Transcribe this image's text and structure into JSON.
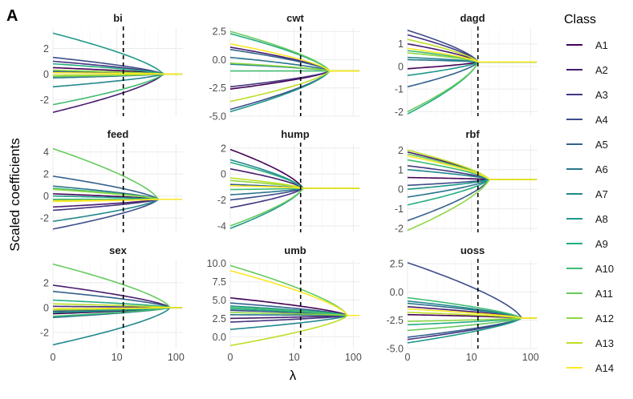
{
  "figure": {
    "panel_letter": "A",
    "xlabel": "λ",
    "ylabel": "Scaled coefficients",
    "legend_title": "Class",
    "dashed_line_x": 13,
    "x_axis": {
      "ticks": [
        0,
        10,
        100
      ],
      "scale": "log1p",
      "xlim": [
        0,
        130
      ]
    }
  },
  "colors": {
    "A1": "#440154",
    "A2": "#481C6E",
    "A3": "#453581",
    "A4": "#3D4D8A",
    "A5": "#34618D",
    "A6": "#2B748E",
    "A7": "#24878E",
    "A8": "#1F998A",
    "A9": "#25AC82",
    "A10": "#40BC72",
    "A11": "#65CB5E",
    "A12": "#8FD744",
    "A13": "#BDDF26",
    "A14": "#FDE725"
  },
  "chart_data": [
    {
      "type": "line",
      "title": "bi",
      "ylim": [
        -3.3,
        3.6
      ],
      "yticks": [
        -2,
        0,
        2
      ],
      "converge": 0,
      "series": [
        {
          "name": "A1",
          "start": 0.5,
          "x_conv": 60
        },
        {
          "name": "A2",
          "start": -3.0,
          "x_conv": 60
        },
        {
          "name": "A3",
          "start": 1.0,
          "x_conv": 60
        },
        {
          "name": "A4",
          "start": 1.3,
          "x_conv": 60
        },
        {
          "name": "A5",
          "start": 0.2,
          "x_conv": 60
        },
        {
          "name": "A6",
          "start": -0.3,
          "x_conv": 60
        },
        {
          "name": "A7",
          "start": -1.0,
          "x_conv": 60
        },
        {
          "name": "A8",
          "start": 3.2,
          "x_conv": 60
        },
        {
          "name": "A9",
          "start": 0.8,
          "x_conv": 60
        },
        {
          "name": "A10",
          "start": -2.4,
          "x_conv": 60
        },
        {
          "name": "A11",
          "start": -0.2,
          "x_conv": 60
        },
        {
          "name": "A12",
          "start": 0.3,
          "x_conv": 60
        },
        {
          "name": "A13",
          "start": -0.1,
          "x_conv": 60
        },
        {
          "name": "A14",
          "start": 0.1,
          "x_conv": 60
        }
      ]
    },
    {
      "type": "line",
      "title": "cwt",
      "ylim": [
        -5.0,
        2.8
      ],
      "yticks": [
        -5.0,
        -2.5,
        0.0,
        2.5
      ],
      "converge": -1.0,
      "series": [
        {
          "name": "A1",
          "start": -2.6,
          "x_conv": 40
        },
        {
          "name": "A2",
          "start": 1.1,
          "x_conv": 40
        },
        {
          "name": "A3",
          "start": -2.4,
          "x_conv": 40
        },
        {
          "name": "A4",
          "start": -4.4,
          "x_conv": 40
        },
        {
          "name": "A5",
          "start": 0.9,
          "x_conv": 40
        },
        {
          "name": "A6",
          "start": 0.2,
          "x_conv": 40
        },
        {
          "name": "A7",
          "start": -0.4,
          "x_conv": 40
        },
        {
          "name": "A8",
          "start": -4.6,
          "x_conv": 40
        },
        {
          "name": "A9",
          "start": 2.3,
          "x_conv": 40
        },
        {
          "name": "A10",
          "start": -1.0,
          "x_conv": 40
        },
        {
          "name": "A11",
          "start": 2.5,
          "x_conv": 40
        },
        {
          "name": "A12",
          "start": -0.3,
          "x_conv": 40
        },
        {
          "name": "A13",
          "start": -3.7,
          "x_conv": 40
        },
        {
          "name": "A14",
          "start": 1.4,
          "x_conv": 40
        }
      ]
    },
    {
      "type": "line",
      "title": "dagd",
      "ylim": [
        -2.2,
        1.7
      ],
      "yticks": [
        -2,
        -1,
        0,
        1
      ],
      "converge": 0.2,
      "series": [
        {
          "name": "A1",
          "start": -0.1,
          "x_conv": 13
        },
        {
          "name": "A2",
          "start": 1.0,
          "x_conv": 13
        },
        {
          "name": "A3",
          "start": 1.4,
          "x_conv": 13
        },
        {
          "name": "A4",
          "start": 1.6,
          "x_conv": 13
        },
        {
          "name": "A5",
          "start": -0.9,
          "x_conv": 13
        },
        {
          "name": "A6",
          "start": 0.3,
          "x_conv": 13
        },
        {
          "name": "A7",
          "start": 0.4,
          "x_conv": 13
        },
        {
          "name": "A8",
          "start": -0.4,
          "x_conv": 13
        },
        {
          "name": "A9",
          "start": -2.1,
          "x_conv": 13
        },
        {
          "name": "A10",
          "start": 0.7,
          "x_conv": 13
        },
        {
          "name": "A11",
          "start": -2.0,
          "x_conv": 13
        },
        {
          "name": "A12",
          "start": 0.6,
          "x_conv": 13
        },
        {
          "name": "A13",
          "start": 1.2,
          "x_conv": 13
        },
        {
          "name": "A14",
          "start": 0.8,
          "x_conv": 13
        }
      ]
    },
    {
      "type": "line",
      "title": "feed",
      "ylim": [
        -3.3,
        4.7
      ],
      "yticks": [
        -2,
        0,
        2,
        4
      ],
      "converge": -0.3,
      "series": [
        {
          "name": "A1",
          "start": 0.2,
          "x_conv": 50
        },
        {
          "name": "A2",
          "start": -1.0,
          "x_conv": 50
        },
        {
          "name": "A3",
          "start": -1.3,
          "x_conv": 50
        },
        {
          "name": "A4",
          "start": -3.0,
          "x_conv": 50
        },
        {
          "name": "A5",
          "start": 1.8,
          "x_conv": 50
        },
        {
          "name": "A6",
          "start": 0.9,
          "x_conv": 50
        },
        {
          "name": "A7",
          "start": -2.3,
          "x_conv": 50
        },
        {
          "name": "A8",
          "start": 0.0,
          "x_conv": 50
        },
        {
          "name": "A9",
          "start": -0.3,
          "x_conv": 50
        },
        {
          "name": "A10",
          "start": 0.7,
          "x_conv": 50
        },
        {
          "name": "A11",
          "start": 4.3,
          "x_conv": 50
        },
        {
          "name": "A12",
          "start": 0.6,
          "x_conv": 50
        },
        {
          "name": "A13",
          "start": -0.4,
          "x_conv": 50
        },
        {
          "name": "A14",
          "start": -0.5,
          "x_conv": 50
        }
      ]
    },
    {
      "type": "line",
      "title": "hump",
      "ylim": [
        -4.5,
        2.3
      ],
      "yticks": [
        -4,
        -2,
        0,
        2
      ],
      "converge": -1.1,
      "series": [
        {
          "name": "A1",
          "start": 1.9,
          "x_conv": 14
        },
        {
          "name": "A2",
          "start": 0.4,
          "x_conv": 14
        },
        {
          "name": "A3",
          "start": -2.6,
          "x_conv": 14
        },
        {
          "name": "A4",
          "start": -2.0,
          "x_conv": 14
        },
        {
          "name": "A5",
          "start": -0.8,
          "x_conv": 14
        },
        {
          "name": "A6",
          "start": -1.6,
          "x_conv": 14
        },
        {
          "name": "A7",
          "start": 1.1,
          "x_conv": 14
        },
        {
          "name": "A8",
          "start": -4.2,
          "x_conv": 14
        },
        {
          "name": "A9",
          "start": 0.9,
          "x_conv": 14
        },
        {
          "name": "A10",
          "start": -1.2,
          "x_conv": 14
        },
        {
          "name": "A11",
          "start": -4.0,
          "x_conv": 14
        },
        {
          "name": "A12",
          "start": -0.5,
          "x_conv": 14
        },
        {
          "name": "A13",
          "start": -0.3,
          "x_conv": 14
        },
        {
          "name": "A14",
          "start": -0.9,
          "x_conv": 14
        }
      ]
    },
    {
      "type": "line",
      "title": "rbf",
      "ylim": [
        -2.2,
        2.3
      ],
      "yticks": [
        -2,
        -1,
        0,
        1,
        2
      ],
      "converge": 0.5,
      "series": [
        {
          "name": "A1",
          "start": 0.6,
          "x_conv": 20
        },
        {
          "name": "A2",
          "start": 1.9,
          "x_conv": 20
        },
        {
          "name": "A3",
          "start": 1.2,
          "x_conv": 20
        },
        {
          "name": "A4",
          "start": 0.2,
          "x_conv": 20
        },
        {
          "name": "A5",
          "start": -1.6,
          "x_conv": 20
        },
        {
          "name": "A6",
          "start": -0.4,
          "x_conv": 20
        },
        {
          "name": "A7",
          "start": 1.0,
          "x_conv": 20
        },
        {
          "name": "A8",
          "start": 0.0,
          "x_conv": 20
        },
        {
          "name": "A9",
          "start": -0.8,
          "x_conv": 20
        },
        {
          "name": "A10",
          "start": 1.5,
          "x_conv": 20
        },
        {
          "name": "A11",
          "start": 1.8,
          "x_conv": 20
        },
        {
          "name": "A12",
          "start": -2.1,
          "x_conv": 20
        },
        {
          "name": "A13",
          "start": 2.0,
          "x_conv": 20
        },
        {
          "name": "A14",
          "start": 1.7,
          "x_conv": 20
        }
      ]
    },
    {
      "type": "line",
      "title": "sex",
      "ylim": [
        -3.3,
        3.8
      ],
      "yticks": [
        -2,
        0,
        2
      ],
      "converge": 0.0,
      "series": [
        {
          "name": "A1",
          "start": -0.5,
          "x_conv": 80
        },
        {
          "name": "A2",
          "start": 1.8,
          "x_conv": 80
        },
        {
          "name": "A3",
          "start": 0.1,
          "x_conv": 80
        },
        {
          "name": "A4",
          "start": -0.3,
          "x_conv": 80
        },
        {
          "name": "A5",
          "start": 1.3,
          "x_conv": 80
        },
        {
          "name": "A6",
          "start": -0.8,
          "x_conv": 80
        },
        {
          "name": "A7",
          "start": -3.0,
          "x_conv": 80
        },
        {
          "name": "A8",
          "start": -0.4,
          "x_conv": 80
        },
        {
          "name": "A9",
          "start": 0.6,
          "x_conv": 80
        },
        {
          "name": "A10",
          "start": -0.7,
          "x_conv": 80
        },
        {
          "name": "A11",
          "start": 3.5,
          "x_conv": 80
        },
        {
          "name": "A12",
          "start": -0.2,
          "x_conv": 80
        },
        {
          "name": "A13",
          "start": 0.3,
          "x_conv": 80
        },
        {
          "name": "A14",
          "start": -0.1,
          "x_conv": 80
        }
      ]
    },
    {
      "type": "line",
      "title": "umb",
      "ylim": [
        -1.6,
        10.4
      ],
      "yticks": [
        0.0,
        2.5,
        5.0,
        7.5,
        10.0
      ],
      "converge": 2.9,
      "series": [
        {
          "name": "A1",
          "start": 5.3,
          "x_conv": 80
        },
        {
          "name": "A2",
          "start": 2.5,
          "x_conv": 80
        },
        {
          "name": "A3",
          "start": 2.0,
          "x_conv": 80
        },
        {
          "name": "A4",
          "start": 3.6,
          "x_conv": 80
        },
        {
          "name": "A5",
          "start": 4.6,
          "x_conv": 80
        },
        {
          "name": "A6",
          "start": 3.0,
          "x_conv": 80
        },
        {
          "name": "A7",
          "start": 1.0,
          "x_conv": 80
        },
        {
          "name": "A8",
          "start": 4.2,
          "x_conv": 80
        },
        {
          "name": "A9",
          "start": 3.8,
          "x_conv": 80
        },
        {
          "name": "A10",
          "start": 4.0,
          "x_conv": 80
        },
        {
          "name": "A11",
          "start": 9.7,
          "x_conv": 80
        },
        {
          "name": "A12",
          "start": 3.3,
          "x_conv": 80
        },
        {
          "name": "A13",
          "start": -1.2,
          "x_conv": 80
        },
        {
          "name": "A14",
          "start": 9.0,
          "x_conv": 80
        }
      ]
    },
    {
      "type": "line",
      "title": "uoss",
      "ylim": [
        -5.0,
        2.8
      ],
      "yticks": [
        -5.0,
        -2.5,
        0.0,
        2.5
      ],
      "converge": -2.3,
      "series": [
        {
          "name": "A1",
          "start": -2.0,
          "x_conv": 70
        },
        {
          "name": "A2",
          "start": -1.3,
          "x_conv": 70
        },
        {
          "name": "A3",
          "start": -4.2,
          "x_conv": 70
        },
        {
          "name": "A4",
          "start": 2.6,
          "x_conv": 70
        },
        {
          "name": "A5",
          "start": -4.0,
          "x_conv": 70
        },
        {
          "name": "A6",
          "start": -1.0,
          "x_conv": 70
        },
        {
          "name": "A7",
          "start": -0.8,
          "x_conv": 70
        },
        {
          "name": "A8",
          "start": -4.5,
          "x_conv": 70
        },
        {
          "name": "A9",
          "start": -2.9,
          "x_conv": 70
        },
        {
          "name": "A10",
          "start": -0.5,
          "x_conv": 70
        },
        {
          "name": "A11",
          "start": -3.4,
          "x_conv": 70
        },
        {
          "name": "A12",
          "start": -2.6,
          "x_conv": 70
        },
        {
          "name": "A13",
          "start": -1.8,
          "x_conv": 70
        },
        {
          "name": "A14",
          "start": -1.5,
          "x_conv": 70
        }
      ]
    }
  ]
}
